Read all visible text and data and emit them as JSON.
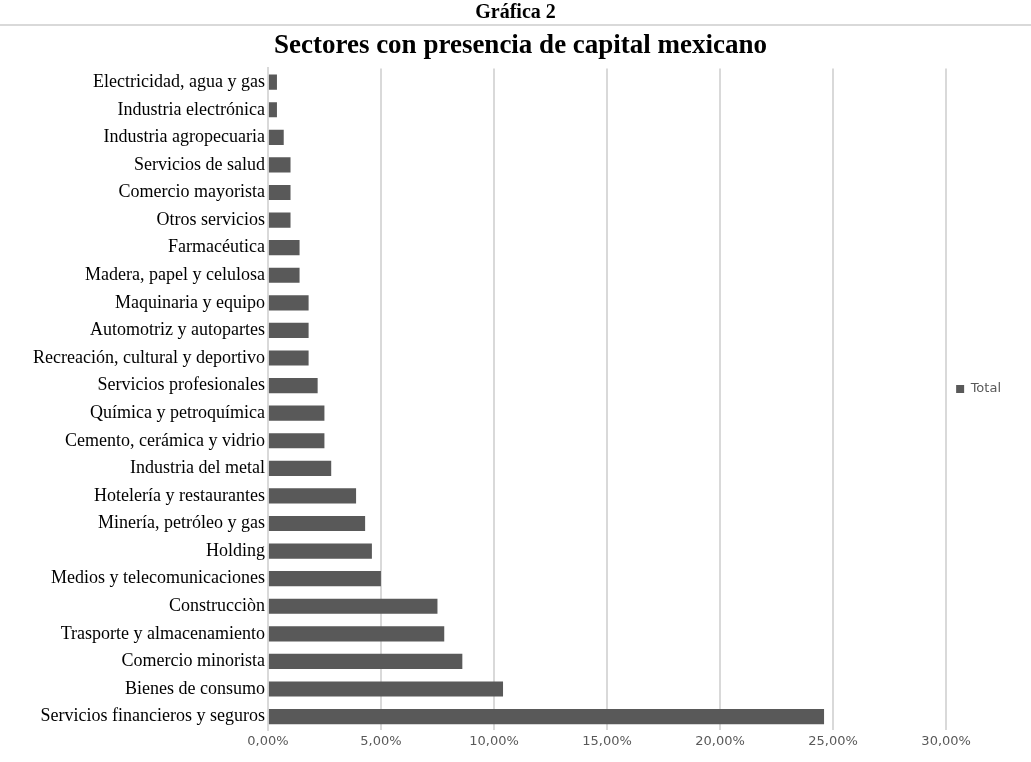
{
  "chart_data": {
    "type": "bar",
    "orientation": "horizontal",
    "title": "Sectores con presencia de capital mexicano",
    "annotations": [
      "Gráfica 2"
    ],
    "categories": [
      "Electricidad, agua y gas",
      "Industria electrónica",
      "Industria agropecuaria",
      "Servicios de salud",
      "Comercio mayorista",
      "Otros servicios",
      "Farmacéutica",
      "Madera, papel y celulosa",
      "Maquinaria y equipo",
      "Automotriz y autopartes",
      "Recreación, cultural y deportivo",
      "Servicios profesionales",
      "Química y petroquímica",
      "Cemento, cerámica y vidrio",
      "Industria del metal",
      "Hotelería y restaurantes",
      "Minería, petróleo y gas",
      "Holding",
      "Medios y telecomunicaciones",
      "Construcciòn",
      "Trasporte y almacenamiento",
      "Comercio minorista",
      "Bienes de consumo",
      "Servicios financieros y seguros"
    ],
    "series": [
      {
        "name": "Total",
        "color": "#595959",
        "values": [
          0.4,
          0.4,
          0.7,
          1.0,
          1.0,
          1.0,
          1.4,
          1.4,
          1.8,
          1.8,
          1.8,
          2.2,
          2.5,
          2.5,
          2.8,
          3.9,
          4.3,
          4.6,
          5.0,
          7.5,
          7.8,
          8.6,
          10.4,
          24.6
        ]
      }
    ],
    "xlim": [
      0,
      30
    ],
    "xticks": [
      {
        "value": 0,
        "label": "0,00%"
      },
      {
        "value": 5,
        "label": "5,00%"
      },
      {
        "value": 10,
        "label": "10,00%"
      },
      {
        "value": 15,
        "label": "15,00%"
      },
      {
        "value": 20,
        "label": "20,00%"
      },
      {
        "value": 25,
        "label": "25,00%"
      },
      {
        "value": 30,
        "label": "30,00%"
      }
    ],
    "grid": "x",
    "legend": "right"
  }
}
